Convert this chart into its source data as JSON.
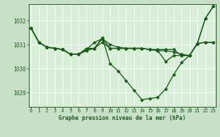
{
  "bg_color": "#c8dfc8",
  "plot_bg": "#d8eed8",
  "grid_color": "#ffffff",
  "line_color": "#1a5c1a",
  "title": "Graphe pression niveau de la mer (hPa)",
  "ylim": [
    1028.4,
    1032.7
  ],
  "yticks": [
    1029,
    1030,
    1031,
    1032
  ],
  "xticks": [
    0,
    1,
    2,
    3,
    4,
    5,
    6,
    7,
    8,
    9,
    10,
    11,
    12,
    13,
    14,
    15,
    16,
    17,
    18,
    19,
    20,
    21,
    22,
    23
  ],
  "series": [
    [
      1031.7,
      1031.1,
      1030.9,
      1030.85,
      1030.8,
      1030.6,
      1030.6,
      1030.85,
      1030.85,
      1031.3,
      1030.2,
      1029.9,
      1029.5,
      1029.1,
      1028.7,
      1028.75,
      1028.8,
      1029.15,
      1029.75,
      1030.25,
      1030.55,
      1031.05,
      1032.1,
      1032.6
    ],
    [
      1031.7,
      1031.1,
      1030.9,
      1030.85,
      1030.8,
      1030.6,
      1030.6,
      1030.8,
      1030.85,
      1031.1,
      1030.85,
      1030.85,
      1030.85,
      1030.85,
      1030.85,
      1030.8,
      1030.75,
      1030.75,
      1030.7,
      1030.6,
      1030.55,
      1031.05,
      1031.1,
      1031.1
    ],
    [
      1031.7,
      1031.1,
      1030.9,
      1030.85,
      1030.8,
      1030.6,
      1030.6,
      1030.8,
      1031.1,
      1031.25,
      1031.0,
      1030.9,
      1030.85,
      1030.85,
      1030.85,
      1030.8,
      1030.8,
      1030.8,
      1030.8,
      1030.55,
      1030.55,
      1031.05,
      1031.1,
      1031.1
    ],
    [
      1031.7,
      1031.1,
      1030.9,
      1030.85,
      1030.8,
      1030.6,
      1030.6,
      1030.75,
      1030.85,
      1031.25,
      1030.85,
      1030.85,
      1030.85,
      1030.85,
      1030.85,
      1030.8,
      1030.75,
      1030.3,
      1030.55,
      1030.55,
      1030.55,
      1031.05,
      1032.1,
      1032.6
    ]
  ],
  "markersize": 2.5,
  "linewidth": 1.0
}
